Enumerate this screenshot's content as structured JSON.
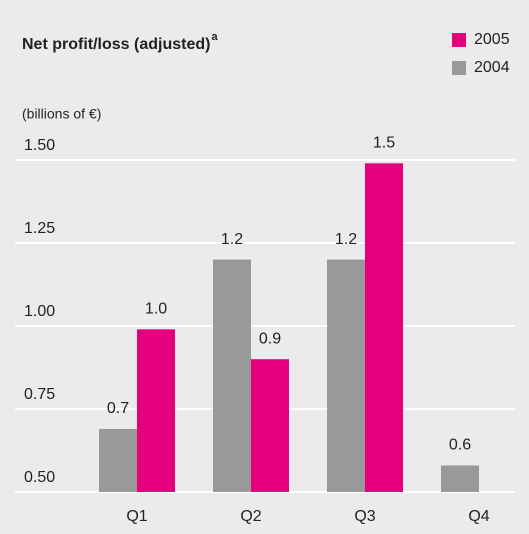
{
  "chart_data": {
    "type": "bar",
    "title": "Net profit/loss (adjusted)",
    "title_note": "a",
    "subtitle": "(billions of €)",
    "categories": [
      "Q1",
      "Q2",
      "Q3",
      "Q4"
    ],
    "series": [
      {
        "name": "2004",
        "color": "#999999",
        "values": [
          0.69,
          1.2,
          1.2,
          0.58
        ],
        "value_labels": [
          "0.7",
          "1.2",
          "1.2",
          "0.6"
        ]
      },
      {
        "name": "2005",
        "color": "#e5007d",
        "values": [
          0.99,
          0.9,
          1.49,
          null
        ],
        "value_labels": [
          "1.0",
          "0.9",
          "1.5",
          null
        ]
      }
    ],
    "ylim": [
      0.5,
      1.5
    ],
    "yticks": [
      {
        "value": 0.5,
        "label": "0.50"
      },
      {
        "value": 0.75,
        "label": "0.75"
      },
      {
        "value": 1.0,
        "label": "1.00"
      },
      {
        "value": 1.25,
        "label": "1.25"
      },
      {
        "value": 1.5,
        "label": "1.50"
      }
    ],
    "grid": true,
    "legend": "top-right"
  }
}
